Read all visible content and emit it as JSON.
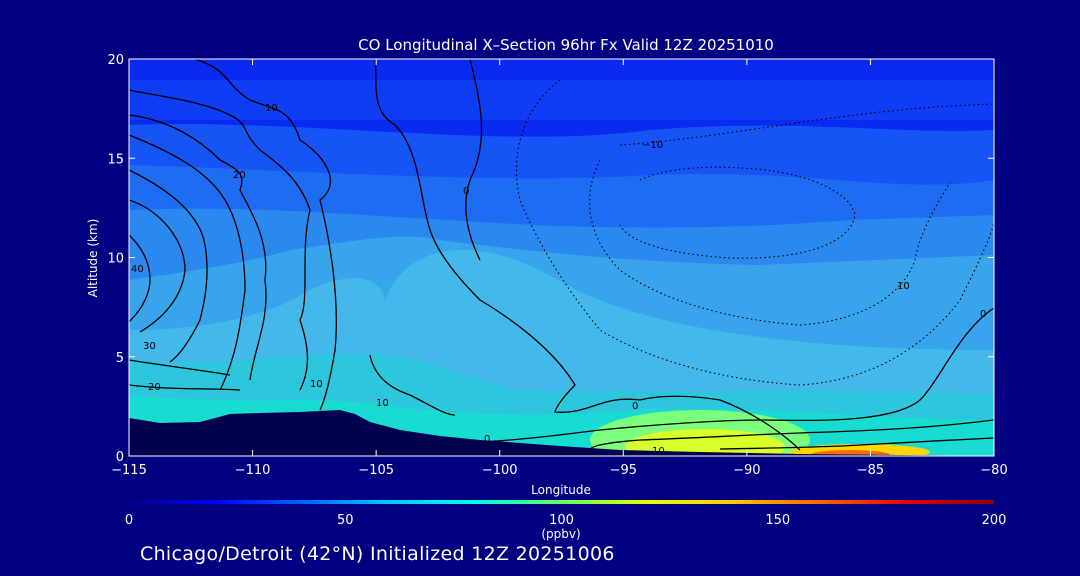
{
  "chart_data": {
    "type": "heatmap",
    "title": "CO Longitudinal X–Section 96hr  Fx Valid 12Z 20251010",
    "xlabel": "Longitude",
    "ylabel": "Altitude (km)",
    "xlim": [
      -115,
      -80
    ],
    "ylim": [
      0,
      20
    ],
    "x_ticks": [
      -115,
      -110,
      -105,
      -100,
      -95,
      -90,
      -85,
      -80
    ],
    "x_tick_labels": [
      "−115",
      "−110",
      "−105",
      "−100",
      "−95",
      "−90",
      "−85",
      "−80"
    ],
    "y_ticks": [
      0,
      5,
      10,
      15,
      20
    ],
    "y_tick_labels": [
      "0",
      "5",
      "10",
      "15",
      "20"
    ],
    "colorbar": {
      "min": 0,
      "max": 200,
      "ticks": [
        0,
        50,
        100,
        150,
        200
      ],
      "tick_labels": [
        "0",
        "50",
        "100",
        "150",
        "200"
      ],
      "unit": "(ppbv)",
      "stops": [
        {
          "v": 0,
          "color": "#00008c"
        },
        {
          "v": 20,
          "color": "#0000ff"
        },
        {
          "v": 40,
          "color": "#0064ff"
        },
        {
          "v": 60,
          "color": "#00c8ff"
        },
        {
          "v": 80,
          "color": "#00ffe6"
        },
        {
          "v": 100,
          "color": "#64ff64"
        },
        {
          "v": 120,
          "color": "#e6ff00"
        },
        {
          "v": 140,
          "color": "#ffc800"
        },
        {
          "v": 160,
          "color": "#ff6400"
        },
        {
          "v": 180,
          "color": "#e60000"
        },
        {
          "v": 200,
          "color": "#8c0000"
        }
      ]
    },
    "contour_labels": [
      "10",
      "20",
      "30",
      "40",
      "0",
      "−10",
      "10",
      "0",
      "10",
      "20",
      "10",
      "0",
      "0",
      "10"
    ]
  },
  "subtitle": "Chicago/Detroit (42°N) Initialized 12Z 20251006"
}
